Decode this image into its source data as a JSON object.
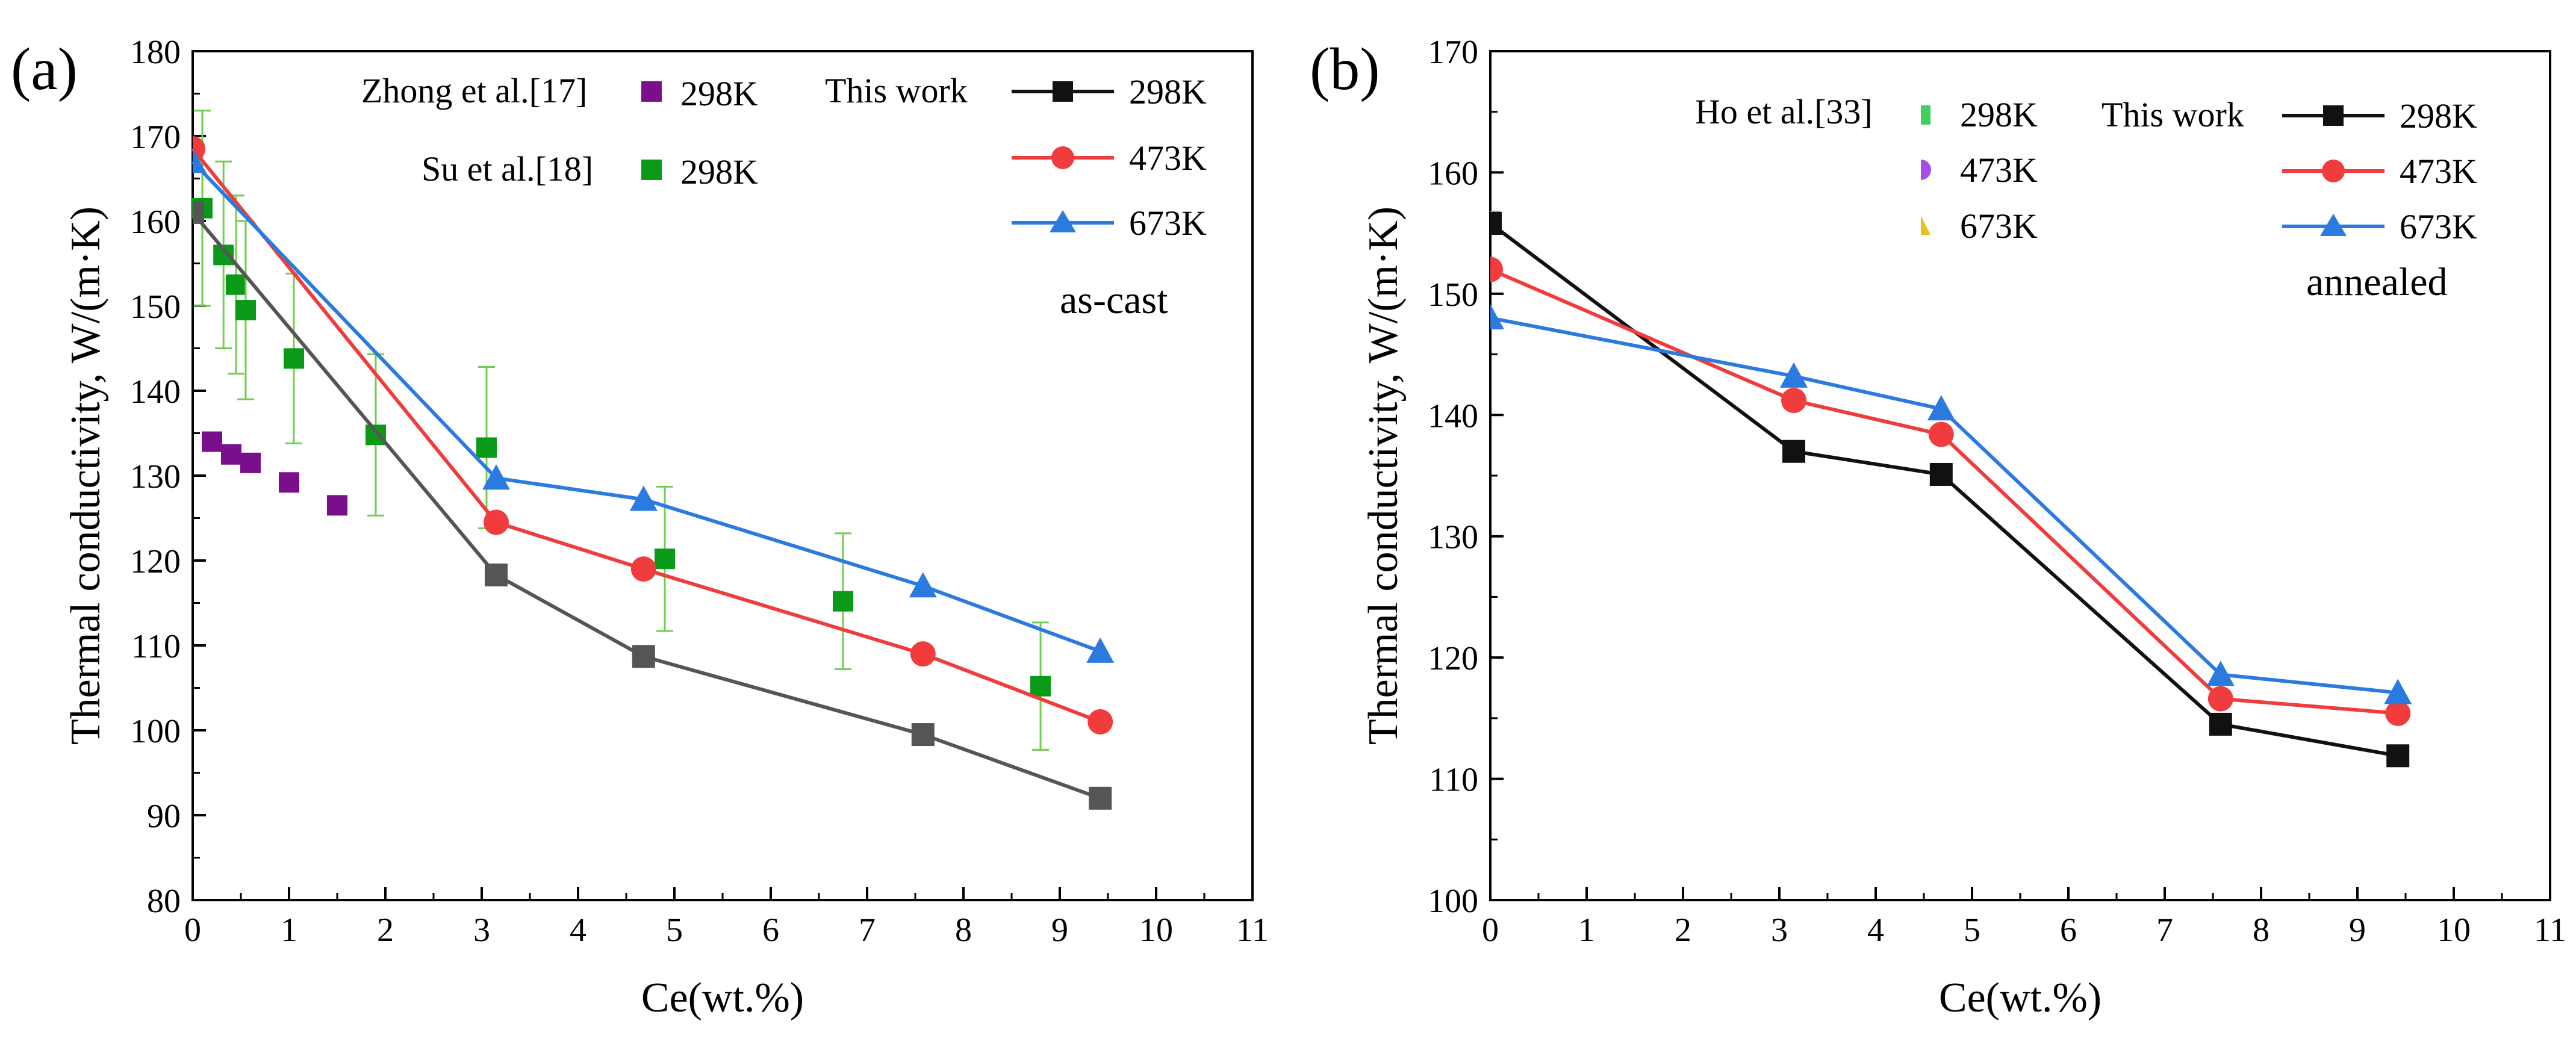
{
  "colors": {
    "black": "#111111",
    "red": "#f03c3c",
    "blue": "#2a7ae0",
    "gray": "#555555",
    "purple": "#7a0f8c",
    "green": "#0a9a17",
    "errbar": "#6fce4f",
    "ho_green": "#3dd05a",
    "ho_violet": "#a64fe8",
    "ho_yellow": "#e6c21a"
  },
  "chart_data": [
    {
      "type": "line",
      "panel_label": "(a)",
      "annotation": "as-cast",
      "xlabel": "Ce(wt.%)",
      "ylabel": "Thermal conductivity, W/(m·K)",
      "xlim": [
        0,
        11
      ],
      "ylim": [
        80,
        180
      ],
      "xticks": [
        "0",
        "1",
        "2",
        "3",
        "4",
        "5",
        "6",
        "7",
        "8",
        "9",
        "10",
        "11"
      ],
      "yticks": [
        "80",
        "90",
        "100",
        "110",
        "120",
        "130",
        "140",
        "150",
        "160",
        "170",
        "180"
      ],
      "legend": {
        "this_work_label": "This work",
        "zhong_label": "Zhong et al.[17]",
        "su_label": "Su et al.[18]",
        "entries": [
          "298K",
          "473K",
          "673K"
        ],
        "zhong_entry": "298K",
        "su_entry": "298K"
      },
      "series": [
        {
          "name": "298K",
          "marker": "square",
          "color_key": "gray",
          "x": [
            0,
            3.15,
            4.68,
            7.58,
            9.42
          ],
          "y": [
            161,
            118.3,
            108.7,
            99.5,
            92
          ]
        },
        {
          "name": "473K",
          "marker": "circle",
          "color_key": "red",
          "x": [
            0,
            3.15,
            4.68,
            7.58,
            9.42
          ],
          "y": [
            168.5,
            124.5,
            119,
            109,
            101
          ]
        },
        {
          "name": "673K",
          "marker": "triangle",
          "color_key": "blue",
          "x": [
            0,
            3.15,
            4.68,
            7.58,
            9.42
          ],
          "y": [
            167,
            129.7,
            127.2,
            117,
            109.3
          ]
        }
      ],
      "reference": [
        {
          "name": "Zhong et al.[17] 298K",
          "marker": "square",
          "color_key": "purple",
          "x": [
            0.2,
            0.4,
            0.6,
            1.0,
            1.5
          ],
          "y": [
            134,
            132.5,
            131.5,
            129.2,
            126.5
          ]
        },
        {
          "name": "Su et al.[18] 298K",
          "marker": "square",
          "color_key": "green",
          "x": [
            0.1,
            0.32,
            0.45,
            0.55,
            1.05,
            1.9,
            3.05,
            4.9,
            6.75,
            8.8
          ],
          "y": [
            161.5,
            156,
            152.5,
            149.5,
            143.8,
            134.8,
            133.3,
            120.2,
            115.2,
            105.2
          ],
          "err": [
            11.5,
            11,
            10.5,
            10.5,
            10,
            9.5,
            9.5,
            8.5,
            8,
            7.5
          ]
        }
      ]
    },
    {
      "type": "line",
      "panel_label": "(b)",
      "annotation": "annealed",
      "xlabel": "Ce(wt.%)",
      "ylabel": "Thermal conductivity, W/(m·K)",
      "xlim": [
        0,
        11
      ],
      "ylim": [
        100,
        170
      ],
      "xticks": [
        "0",
        "1",
        "2",
        "3",
        "4",
        "5",
        "6",
        "7",
        "8",
        "9",
        "10",
        "11"
      ],
      "yticks": [
        "100",
        "110",
        "120",
        "130",
        "140",
        "150",
        "160",
        "170"
      ],
      "legend": {
        "this_work_label": "This work",
        "ho_label": "Ho et al.[33]",
        "entries": [
          "298K",
          "473K",
          "673K"
        ],
        "ho_entries": [
          "298K",
          "473K",
          "673K"
        ]
      },
      "series": [
        {
          "name": "298K",
          "marker": "square",
          "color_key": "black",
          "x": [
            0,
            3.15,
            4.68,
            7.58,
            9.42
          ],
          "y": [
            155.8,
            137,
            135.1,
            114.5,
            111.9
          ]
        },
        {
          "name": "473K",
          "marker": "circle",
          "color_key": "red",
          "x": [
            0,
            3.15,
            4.68,
            7.58,
            9.42
          ],
          "y": [
            152,
            141.2,
            138.4,
            116.6,
            115.4
          ]
        },
        {
          "name": "673K",
          "marker": "triangle",
          "color_key": "blue",
          "x": [
            0,
            3.15,
            4.68,
            7.58,
            9.42
          ],
          "y": [
            148,
            143.2,
            140.5,
            118.6,
            117.1
          ]
        }
      ],
      "reference": [
        {
          "name": "Ho et al.[33] 298K",
          "marker": "square",
          "color_key": "ho_green",
          "x": [
            0
          ],
          "y": [
            156
          ]
        },
        {
          "name": "Ho et al.[33] 473K",
          "marker": "circle",
          "color_key": "ho_violet",
          "x": [
            0
          ],
          "y": [
            152
          ]
        },
        {
          "name": "Ho et al.[33] 673K",
          "marker": "triangle",
          "color_key": "ho_yellow",
          "x": [
            0
          ],
          "y": [
            148.3
          ]
        }
      ]
    }
  ]
}
